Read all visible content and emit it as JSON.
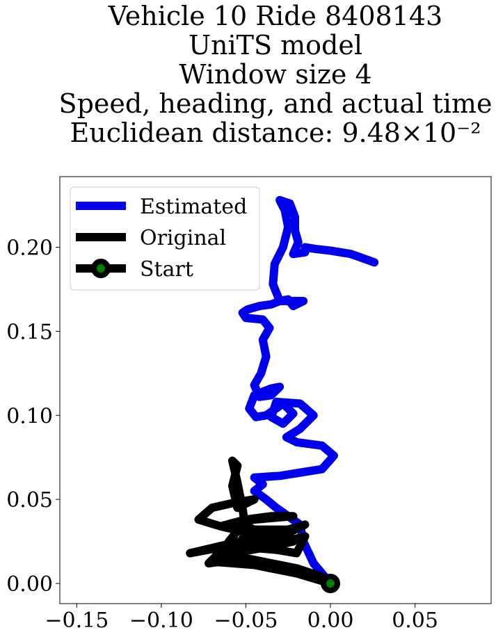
{
  "chart_data": {
    "type": "line",
    "title_lines": [
      "Vehicle 10 Ride 8408143",
      "UniTS model",
      "Window size 4",
      "Speed, heading, and actual time",
      "Euclidean distance: 9.48×10⁻²"
    ],
    "xlim": [
      -0.16,
      0.095
    ],
    "ylim": [
      -0.012,
      0.242
    ],
    "x_ticks": [
      -0.15,
      -0.1,
      -0.05,
      0.0,
      0.05
    ],
    "x_tick_labels": [
      "−0.15",
      "−0.10",
      "−0.05",
      "0.00",
      "0.05"
    ],
    "y_ticks": [
      0.0,
      0.05,
      0.1,
      0.15,
      0.2
    ],
    "y_tick_labels": [
      "0.00",
      "0.05",
      "0.10",
      "0.15",
      "0.20"
    ],
    "grid": false,
    "legend": {
      "placement": "top-left",
      "entries": [
        "Estimated",
        "Original",
        "Start"
      ]
    },
    "series": [
      {
        "name": "Estimated",
        "color": "#0000ee",
        "points": [
          [
            0.0,
            0.0
          ],
          [
            -0.01,
            0.012
          ],
          [
            -0.016,
            0.025
          ],
          [
            -0.018,
            0.035
          ],
          [
            -0.025,
            0.04
          ],
          [
            -0.032,
            0.045
          ],
          [
            -0.038,
            0.05
          ],
          [
            -0.045,
            0.055
          ],
          [
            -0.04,
            0.059
          ],
          [
            -0.045,
            0.063
          ],
          [
            -0.03,
            0.064
          ],
          [
            -0.005,
            0.068
          ],
          [
            0.002,
            0.076
          ],
          [
            -0.005,
            0.082
          ],
          [
            -0.02,
            0.084
          ],
          [
            -0.026,
            0.087
          ],
          [
            -0.018,
            0.092
          ],
          [
            -0.01,
            0.1
          ],
          [
            -0.018,
            0.107
          ],
          [
            -0.032,
            0.108
          ],
          [
            -0.035,
            0.099
          ],
          [
            -0.028,
            0.095
          ],
          [
            -0.022,
            0.101
          ],
          [
            -0.028,
            0.107
          ],
          [
            -0.038,
            0.1
          ],
          [
            -0.044,
            0.099
          ],
          [
            -0.048,
            0.104
          ],
          [
            -0.045,
            0.112
          ],
          [
            -0.035,
            0.116
          ],
          [
            -0.03,
            0.117
          ],
          [
            -0.035,
            0.112
          ],
          [
            -0.042,
            0.111
          ],
          [
            -0.045,
            0.118
          ],
          [
            -0.041,
            0.125
          ],
          [
            -0.038,
            0.135
          ],
          [
            -0.04,
            0.145
          ],
          [
            -0.036,
            0.152
          ],
          [
            -0.04,
            0.157
          ],
          [
            -0.05,
            0.158
          ],
          [
            -0.052,
            0.161
          ],
          [
            -0.049,
            0.163
          ],
          [
            -0.042,
            0.165
          ],
          [
            -0.035,
            0.166
          ],
          [
            -0.03,
            0.168
          ],
          [
            -0.025,
            0.169
          ],
          [
            -0.022,
            0.165
          ],
          [
            -0.016,
            0.168
          ],
          [
            -0.03,
            0.168
          ],
          [
            -0.034,
            0.178
          ],
          [
            -0.033,
            0.19
          ],
          [
            -0.028,
            0.2
          ],
          [
            -0.025,
            0.212
          ],
          [
            -0.027,
            0.222
          ],
          [
            -0.03,
            0.228
          ],
          [
            -0.024,
            0.226
          ],
          [
            -0.021,
            0.218
          ],
          [
            -0.021,
            0.21
          ],
          [
            -0.019,
            0.203
          ],
          [
            -0.022,
            0.196
          ],
          [
            -0.015,
            0.197
          ],
          [
            -0.015,
            0.2
          ],
          [
            -0.009,
            0.199
          ],
          [
            0.0,
            0.198
          ],
          [
            0.012,
            0.196
          ],
          [
            0.026,
            0.191
          ]
        ]
      },
      {
        "name": "Original",
        "color": "#000000",
        "points": [
          [
            0.0,
            0.0
          ],
          [
            -0.02,
            0.006
          ],
          [
            -0.045,
            0.011
          ],
          [
            -0.07,
            0.013
          ],
          [
            -0.058,
            0.018
          ],
          [
            -0.035,
            0.022
          ],
          [
            -0.022,
            0.025
          ],
          [
            -0.045,
            0.027
          ],
          [
            -0.083,
            0.018
          ],
          [
            -0.062,
            0.022
          ],
          [
            -0.04,
            0.026
          ],
          [
            -0.03,
            0.03
          ],
          [
            -0.052,
            0.031
          ],
          [
            -0.065,
            0.034
          ],
          [
            -0.05,
            0.038
          ],
          [
            -0.035,
            0.04
          ],
          [
            -0.022,
            0.04
          ],
          [
            -0.045,
            0.038
          ],
          [
            -0.065,
            0.034
          ],
          [
            -0.078,
            0.038
          ],
          [
            -0.07,
            0.045
          ],
          [
            -0.057,
            0.048
          ],
          [
            -0.045,
            0.05
          ],
          [
            -0.055,
            0.045
          ],
          [
            -0.058,
            0.058
          ],
          [
            -0.055,
            0.07
          ],
          [
            -0.058,
            0.073
          ],
          [
            -0.055,
            0.06
          ],
          [
            -0.052,
            0.045
          ],
          [
            -0.05,
            0.03
          ],
          [
            -0.056,
            0.02
          ],
          [
            -0.065,
            0.015
          ],
          [
            -0.06,
            0.025
          ],
          [
            -0.052,
            0.035
          ],
          [
            -0.045,
            0.032
          ],
          [
            -0.025,
            0.032
          ],
          [
            -0.015,
            0.035
          ],
          [
            -0.025,
            0.03
          ],
          [
            -0.04,
            0.028
          ],
          [
            -0.055,
            0.022
          ],
          [
            -0.032,
            0.02
          ],
          [
            -0.02,
            0.018
          ],
          [
            -0.015,
            0.028
          ],
          [
            -0.03,
            0.024
          ],
          [
            -0.045,
            0.021
          ],
          [
            -0.06,
            0.024
          ],
          [
            -0.072,
            0.012
          ],
          [
            -0.05,
            0.015
          ],
          [
            -0.035,
            0.012
          ],
          [
            -0.02,
            0.009
          ],
          [
            -0.005,
            0.004
          ],
          [
            0.0,
            0.0
          ]
        ]
      }
    ],
    "start_point": {
      "name": "Start",
      "x": 0.0,
      "y": 0.0,
      "marker_edge": "#000000",
      "marker_face": "#008000"
    }
  }
}
